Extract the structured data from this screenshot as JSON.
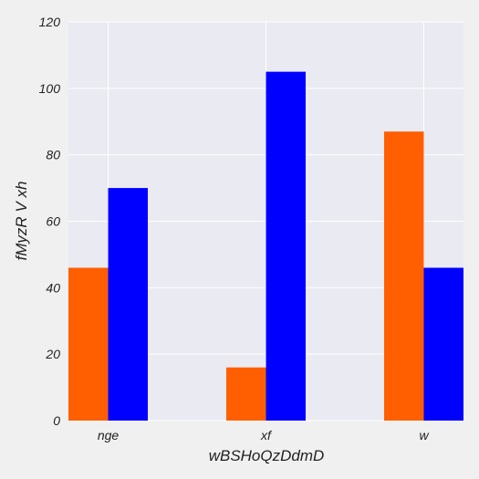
{
  "chart_data": {
    "type": "bar",
    "title": "",
    "xlabel": "wBSHoQzDdmD",
    "ylabel": "fMyzR V xh",
    "categories": [
      "nge",
      "xf",
      "w"
    ],
    "series": [
      {
        "color": "#ff5f00",
        "values": [
          46,
          16,
          87
        ]
      },
      {
        "color": "#0000ff",
        "values": [
          70,
          105,
          46
        ]
      }
    ],
    "ylim": [
      0,
      120
    ],
    "yticks": [
      0,
      20,
      40,
      60,
      80,
      100,
      120
    ],
    "grid": true,
    "legend": "none"
  },
  "colors": {
    "plot_background": "#eaeaf2",
    "page_background": "#f0f0f0",
    "grid": "#ffffff"
  }
}
